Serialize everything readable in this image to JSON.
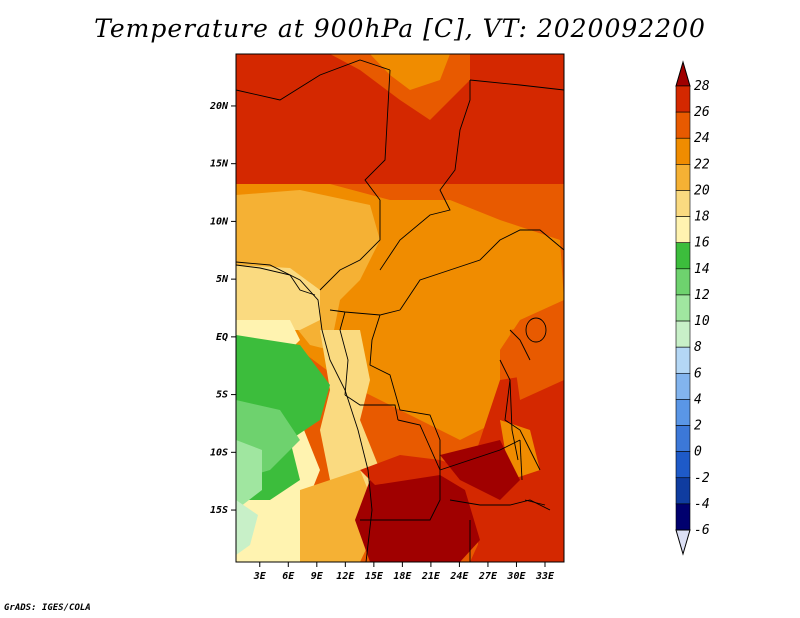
{
  "title": "Temperature at 900hPa [C], VT: 2020092200",
  "credit": "GrADS: IGES/COLA",
  "map": {
    "lon_ticks": [
      "3E",
      "6E",
      "9E",
      "12E",
      "15E",
      "18E",
      "21E",
      "24E",
      "27E",
      "30E",
      "33E"
    ],
    "lat_ticks": [
      "20N",
      "15N",
      "10N",
      "5N",
      "EQ",
      "5S",
      "10S",
      "15S"
    ],
    "lon_values": [
      3,
      6,
      9,
      12,
      15,
      18,
      21,
      24,
      27,
      30,
      33
    ],
    "lat_values": [
      20,
      15,
      10,
      5,
      0,
      -5,
      -10,
      -15
    ],
    "lon_range": [
      0.5,
      35
    ],
    "lat_range": [
      -19.5,
      24.5
    ]
  },
  "colorbar": {
    "labels": [
      "28",
      "26",
      "24",
      "22",
      "20",
      "18",
      "16",
      "14",
      "12",
      "10",
      "8",
      "6",
      "4",
      "2",
      "0",
      "-2",
      "-4",
      "-6"
    ],
    "colors": [
      "#a00000",
      "#d42800",
      "#e85a00",
      "#f08c00",
      "#f5b134",
      "#fada80",
      "#fff3b0",
      "#3cbd3c",
      "#6ed26e",
      "#a0e6a0",
      "#c8f0c8",
      "#b4d7f5",
      "#82b4ee",
      "#5a96e6",
      "#3c78d8",
      "#1e5ac8",
      "#0f3ca0",
      "#00006e",
      "#dce0f5"
    ],
    "level_low": -6,
    "level_high": 28,
    "level_step": 2
  }
}
